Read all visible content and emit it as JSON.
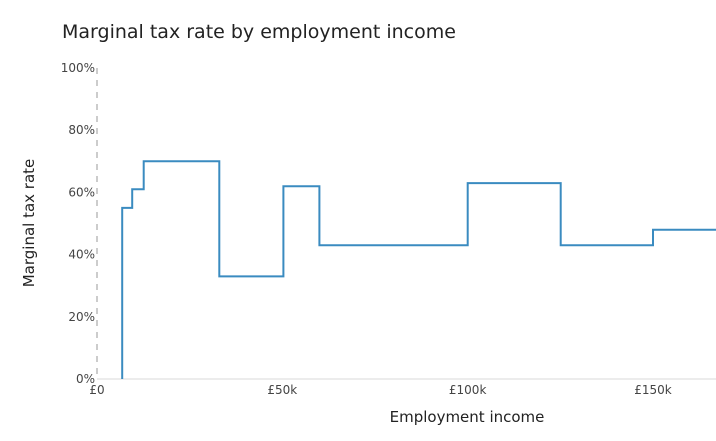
{
  "chart_data": {
    "type": "line",
    "title": "Marginal tax rate by employment income",
    "xlabel": "Employment income",
    "ylabel": "Marginal tax rate",
    "xlim": [
      0,
      167000
    ],
    "ylim": [
      0,
      100
    ],
    "x_ticks": [
      {
        "value": 0,
        "label": "£0"
      },
      {
        "value": 50000,
        "label": "£50k"
      },
      {
        "value": 100000,
        "label": "£100k"
      },
      {
        "value": 150000,
        "label": "£150k"
      }
    ],
    "y_ticks": [
      {
        "value": 0,
        "label": "0%"
      },
      {
        "value": 20,
        "label": "20%"
      },
      {
        "value": 40,
        "label": "40%"
      },
      {
        "value": 60,
        "label": "60%"
      },
      {
        "value": 80,
        "label": "80%"
      },
      {
        "value": 100,
        "label": "100%"
      }
    ],
    "grid": false,
    "legend": "none",
    "series": [
      {
        "color": "#3a8bc0",
        "points": [
          [
            6800,
            0
          ],
          [
            6800,
            55
          ],
          [
            9500,
            55
          ],
          [
            9500,
            61
          ],
          [
            12600,
            61
          ],
          [
            12600,
            70
          ],
          [
            33000,
            70
          ],
          [
            33000,
            33
          ],
          [
            50300,
            33
          ],
          [
            50300,
            62
          ],
          [
            60000,
            62
          ],
          [
            60000,
            43
          ],
          [
            100000,
            43
          ],
          [
            100000,
            63
          ],
          [
            125100,
            63
          ],
          [
            125100,
            43
          ],
          [
            150000,
            43
          ],
          [
            150000,
            48
          ],
          [
            167000,
            48
          ]
        ]
      }
    ]
  }
}
